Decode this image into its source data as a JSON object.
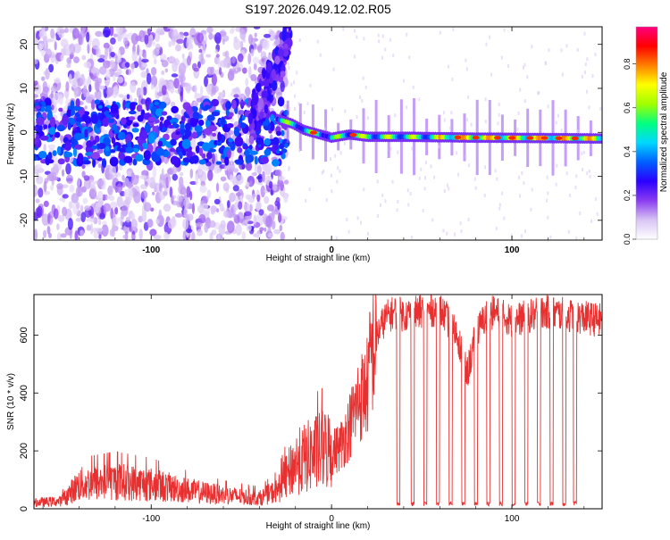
{
  "page_title": "S197.2026.049.12.02.R05",
  "colorbar": {
    "label": "Normalized spectral amplitude",
    "ticks": [
      {
        "value": 0.0,
        "label": "0.0"
      },
      {
        "value": 0.2,
        "label": "0.2"
      },
      {
        "value": 0.4,
        "label": "0.4"
      },
      {
        "value": 0.6,
        "label": "0.6"
      },
      {
        "value": 0.8,
        "label": "0.8"
      }
    ],
    "range": [
      0,
      0.97
    ],
    "stops": [
      "#ffffff",
      "#d8c4f4",
      "#8a3cf0",
      "#2a00ff",
      "#0060ff",
      "#00d8ff",
      "#00ff80",
      "#a0ff00",
      "#ffff00",
      "#ff8000",
      "#ff0000",
      "#ff0080"
    ]
  },
  "chart_data": [
    {
      "type": "heatmap",
      "title": "",
      "xlabel": "Height of straight line (km)",
      "ylabel": "Frequency (Hz)",
      "xlim": [
        -165,
        150
      ],
      "ylim": [
        -24.5,
        24
      ],
      "xticks": [
        {
          "value": -100,
          "label": "-100"
        },
        {
          "value": 0,
          "label": "0"
        },
        {
          "value": 100,
          "label": "100"
        }
      ],
      "yticks": [
        {
          "value": 20,
          "label": "20"
        },
        {
          "value": 10,
          "label": "10"
        },
        {
          "value": 0,
          "label": "0"
        },
        {
          "value": -10,
          "label": "-10"
        },
        {
          "value": -20,
          "label": "-20"
        }
      ],
      "ridge_line": [
        [
          -30,
          3
        ],
        [
          -22,
          2
        ],
        [
          -15,
          0.5
        ],
        [
          0,
          -1.2
        ],
        [
          10,
          -0.5
        ],
        [
          20,
          -1
        ],
        [
          40,
          -1
        ],
        [
          80,
          -1.2
        ],
        [
          120,
          -1.3
        ],
        [
          150,
          -1.4
        ]
      ]
    },
    {
      "type": "line",
      "title": "",
      "xlabel": "Height of straight line (km)",
      "ylabel": "SNR (10 * v/v)",
      "xlim": [
        -165,
        150
      ],
      "ylim": [
        0,
        740
      ],
      "xticks": [
        {
          "value": -100,
          "label": "-100"
        },
        {
          "value": 0,
          "label": "0"
        },
        {
          "value": 100,
          "label": "100"
        }
      ],
      "yticks": [
        {
          "value": 0,
          "label": "0"
        },
        {
          "value": 200,
          "label": "200"
        },
        {
          "value": 400,
          "label": "400"
        },
        {
          "value": 600,
          "label": "600"
        }
      ],
      "series": [
        {
          "name": "SNR",
          "color": "#e83030",
          "x": [
            -165,
            -150,
            -140,
            -120,
            -100,
            -80,
            -60,
            -40,
            -30,
            -20,
            -10,
            0,
            5,
            10,
            15,
            18,
            20,
            22,
            25,
            30,
            35,
            40,
            60,
            70,
            75,
            80,
            85,
            90,
            100,
            120,
            150
          ],
          "y": [
            20,
            25,
            80,
            90,
            80,
            60,
            45,
            35,
            60,
            150,
            180,
            200,
            230,
            300,
            400,
            420,
            450,
            570,
            600,
            660,
            680,
            670,
            690,
            600,
            460,
            600,
            660,
            680,
            650,
            680,
            650
          ],
          "dropouts_x": [
            37,
            45,
            52,
            59,
            66,
            73,
            80,
            87,
            94,
            101,
            108,
            115,
            122,
            129,
            135
          ]
        }
      ]
    }
  ]
}
